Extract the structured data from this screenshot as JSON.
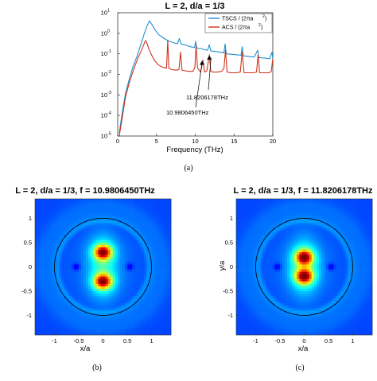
{
  "chart_data": [
    {
      "type": "line",
      "title": "L = 2, d/a = 1/3",
      "xlabel": "Frequency (THz)",
      "ylabel": "",
      "xlim": [
        0,
        20
      ],
      "ylim_log10": [
        -5,
        1
      ],
      "xscale": "linear",
      "yscale": "log",
      "x_ticks": [
        "0",
        "5",
        "10",
        "15",
        "20"
      ],
      "y_ticks": [
        "10^-5",
        "10^-4",
        "10^-3",
        "10^-2",
        "10^-1",
        "10^0",
        "10^1"
      ],
      "legend_position": "top-right",
      "grid": false,
      "caption": "(a)",
      "series": [
        {
          "name": "TSCS / (2πa²)",
          "legend": "TSCS / (2πa",
          "color": "#1f8fd0",
          "x": [
            0.2,
            0.6,
            1.0,
            1.5,
            2.0,
            2.5,
            3.0,
            3.4,
            3.8,
            4.1,
            4.4,
            4.8,
            5.3,
            6.0,
            6.6,
            7.2,
            7.7,
            7.95,
            8.2,
            8.8,
            9.4,
            9.9,
            10.05,
            10.2,
            10.7,
            11.2,
            11.6,
            11.8,
            12.0,
            12.6,
            13.2,
            13.7,
            13.85,
            14.0,
            14.6,
            15.3,
            15.9,
            16.05,
            16.2,
            16.9,
            17.6,
            18.05,
            18.2,
            18.9,
            19.6,
            19.9,
            20.0
          ],
          "y": [
            1.4e-05,
            0.00015,
            0.0012,
            0.006,
            0.025,
            0.08,
            0.3,
            0.9,
            2.4,
            4.0,
            2.7,
            1.5,
            0.85,
            0.55,
            0.42,
            0.35,
            0.31,
            0.55,
            0.3,
            0.26,
            0.22,
            0.2,
            0.4,
            0.19,
            0.18,
            0.16,
            0.15,
            0.28,
            0.14,
            0.13,
            0.12,
            0.11,
            0.3,
            0.1,
            0.095,
            0.09,
            0.085,
            0.22,
            0.08,
            0.075,
            0.07,
            0.15,
            0.066,
            0.062,
            0.058,
            0.12,
            0.055
          ]
        },
        {
          "name": "ACS / (2πa²)",
          "legend": "ACS / (2πa",
          "color": "#d0341c",
          "x": [
            0.2,
            0.6,
            1.0,
            1.5,
            2.0,
            2.5,
            3.0,
            3.3,
            3.6,
            3.8,
            4.0,
            4.3,
            4.7,
            5.2,
            5.8,
            6.3,
            6.45,
            6.6,
            7.0,
            7.5,
            7.9,
            8.1,
            8.3,
            8.7,
            9.2,
            9.7,
            9.95,
            10.1,
            10.3,
            10.7,
            10.98,
            11.2,
            11.5,
            11.82,
            12.0,
            12.3,
            12.9,
            13.4,
            13.7,
            13.9,
            14.1,
            14.6,
            15.3,
            15.8,
            16.05,
            16.3,
            16.9,
            17.5,
            17.9,
            18.1,
            18.3,
            18.9,
            19.5,
            19.8,
            20.0
          ],
          "y": [
            1e-05,
            8e-05,
            0.0008,
            0.004,
            0.015,
            0.05,
            0.13,
            0.25,
            0.45,
            0.3,
            0.18,
            0.1,
            0.05,
            0.03,
            0.022,
            0.02,
            0.45,
            0.02,
            0.017,
            0.016,
            0.017,
            0.12,
            0.016,
            0.015,
            0.014,
            0.014,
            0.022,
            0.25,
            0.02,
            0.013,
            0.05,
            0.013,
            0.015,
            0.09,
            0.014,
            0.013,
            0.013,
            0.014,
            0.02,
            0.15,
            0.013,
            0.012,
            0.012,
            0.013,
            0.12,
            0.012,
            0.012,
            0.012,
            0.013,
            0.09,
            0.012,
            0.012,
            0.012,
            0.014,
            0.06
          ]
        }
      ],
      "annotations": [
        {
          "text": "11.8206178THz",
          "x": 11.82,
          "y": 0.09
        },
        {
          "text": "10.9806450THz",
          "x": 10.98,
          "y": 0.05
        }
      ]
    },
    {
      "type": "heatmap",
      "title": "L = 2, d/a = 1/3, f = 10.9806450THz",
      "xlabel": "x/a",
      "ylabel": "",
      "xlim": [
        -1.4,
        1.4
      ],
      "ylim": [
        -1.4,
        1.4
      ],
      "x_ticks": [
        "-1",
        "-0.5",
        "0",
        "0.5",
        "1"
      ],
      "y_ticks": [
        "1",
        "0.5",
        "0",
        "-0.5",
        "-1"
      ],
      "colormap": "jet",
      "circle_radius": 1.0,
      "hotspots": [
        {
          "x": 0,
          "y": 0.3,
          "intensity": 1.0
        },
        {
          "x": 0,
          "y": -0.3,
          "intensity": 1.0
        }
      ],
      "caption": "(b)"
    },
    {
      "type": "heatmap",
      "title": "L = 2, d/a = 1/3, f = 11.8206178THz",
      "xlabel": "x/a",
      "ylabel": "y/a",
      "xlim": [
        -1.4,
        1.4
      ],
      "ylim": [
        -1.4,
        1.4
      ],
      "x_ticks": [
        "-1",
        "-0.5",
        "0",
        "0.5",
        "1"
      ],
      "y_ticks": [
        "1",
        "0.5",
        "0",
        "-0.5",
        "-1"
      ],
      "colormap": "jet",
      "circle_radius": 1.0,
      "hotspots": [
        {
          "x": 0,
          "y": 0.2,
          "intensity": 1.0
        },
        {
          "x": 0,
          "y": -0.2,
          "intensity": 1.0
        }
      ],
      "caption": "(c)"
    }
  ]
}
